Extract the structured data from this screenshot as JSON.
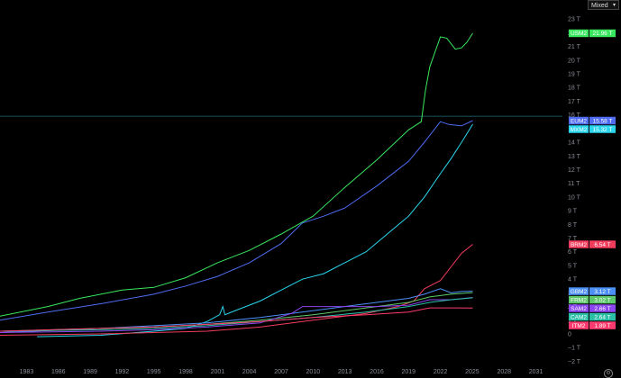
{
  "toolbar": {
    "scale_mode": "Mixed"
  },
  "icons": {
    "settings": "gear-icon",
    "dropdown": "chevron-down-icon"
  },
  "chart_data": {
    "type": "line",
    "xlim": [
      1980.5,
      2033.5
    ],
    "ylim": [
      -2.3,
      23.6
    ],
    "x_ticks": [
      "1983",
      "1986",
      "1989",
      "1992",
      "1995",
      "1998",
      "2001",
      "2004",
      "2007",
      "2010",
      "2013",
      "2016",
      "2019",
      "2022",
      "2025",
      "2028",
      "2031"
    ],
    "y_ticks": [
      "23 T",
      "22 T",
      "21 T",
      "20 T",
      "19 T",
      "18 T",
      "17 T",
      "16 T",
      "15 T",
      "14 T",
      "13 T",
      "12 T",
      "11 T",
      "10 T",
      "9 T",
      "8 T",
      "7 T",
      "6 T",
      "5 T",
      "4 T",
      "3 T",
      "2 T",
      "1 T",
      "0",
      "−1 T",
      "−2 T"
    ],
    "y_tick_values": [
      23,
      22,
      21,
      20,
      19,
      18,
      17,
      16,
      15,
      14,
      13,
      12,
      11,
      10,
      9,
      8,
      7,
      6,
      5,
      4,
      3,
      2,
      1,
      0,
      -1,
      -2
    ],
    "crosshair_y": 15.9,
    "series": [
      {
        "name": "USM2",
        "label": "21.96 T",
        "color": "#39e75f",
        "points": [
          [
            1980.5,
            1.3
          ],
          [
            1985,
            2.0
          ],
          [
            1988,
            2.6
          ],
          [
            1992,
            3.2
          ],
          [
            1995,
            3.4
          ],
          [
            1998,
            4.1
          ],
          [
            2001,
            5.2
          ],
          [
            2004,
            6.1
          ],
          [
            2007,
            7.3
          ],
          [
            2010,
            8.6
          ],
          [
            2013,
            10.7
          ],
          [
            2016,
            12.7
          ],
          [
            2019,
            14.9
          ],
          [
            2020.2,
            15.5
          ],
          [
            2020.6,
            17.8
          ],
          [
            2021,
            19.5
          ],
          [
            2022,
            21.7
          ],
          [
            2022.6,
            21.6
          ],
          [
            2023.4,
            20.8
          ],
          [
            2024,
            20.9
          ],
          [
            2024.5,
            21.3
          ],
          [
            2025.05,
            21.96
          ]
        ]
      },
      {
        "name": "EUM2",
        "label": "15.58 T",
        "color": "#4f6cf2",
        "points": [
          [
            1980.5,
            1.0
          ],
          [
            1985,
            1.6
          ],
          [
            1990,
            2.2
          ],
          [
            1995,
            2.9
          ],
          [
            1998,
            3.5
          ],
          [
            2001,
            4.2
          ],
          [
            2004,
            5.2
          ],
          [
            2007,
            6.6
          ],
          [
            2009,
            8.1
          ],
          [
            2011,
            8.6
          ],
          [
            2013,
            9.2
          ],
          [
            2016,
            10.8
          ],
          [
            2019,
            12.6
          ],
          [
            2020.5,
            14.0
          ],
          [
            2022,
            15.5
          ],
          [
            2022.8,
            15.3
          ],
          [
            2024,
            15.2
          ],
          [
            2025.05,
            15.58
          ]
        ]
      },
      {
        "name": "MXM2",
        "label": "15.32 T",
        "color": "#2ad6ee",
        "points": [
          [
            1984,
            -0.2
          ],
          [
            1990,
            -0.1
          ],
          [
            1995,
            0.2
          ],
          [
            1998,
            0.4
          ],
          [
            2000,
            0.9
          ],
          [
            2001.2,
            1.4
          ],
          [
            2001.5,
            2.0
          ],
          [
            2001.7,
            1.4
          ],
          [
            2003,
            1.8
          ],
          [
            2005,
            2.4
          ],
          [
            2007,
            3.2
          ],
          [
            2009,
            4.0
          ],
          [
            2011,
            4.4
          ],
          [
            2013,
            5.2
          ],
          [
            2015,
            6.0
          ],
          [
            2017,
            7.3
          ],
          [
            2019,
            8.6
          ],
          [
            2020.5,
            10.0
          ],
          [
            2022,
            11.7
          ],
          [
            2023,
            12.8
          ],
          [
            2024,
            14.0
          ],
          [
            2025.05,
            15.32
          ]
        ]
      },
      {
        "name": "BRM2",
        "label": "6.54 T",
        "color": "#f23c5c",
        "points": [
          [
            1980.5,
            -0.1
          ],
          [
            1990,
            0.0
          ],
          [
            1995,
            0.1
          ],
          [
            2000,
            0.2
          ],
          [
            2005,
            0.5
          ],
          [
            2010,
            1.0
          ],
          [
            2015,
            1.5
          ],
          [
            2018,
            2.0
          ],
          [
            2019.5,
            2.4
          ],
          [
            2020.5,
            3.3
          ],
          [
            2022,
            3.9
          ],
          [
            2023,
            4.9
          ],
          [
            2024,
            5.9
          ],
          [
            2025.05,
            6.54
          ]
        ]
      },
      {
        "name": "GBM2",
        "label": "3.12 T",
        "color": "#4c8ff5",
        "points": [
          [
            1980.5,
            0.1
          ],
          [
            1990,
            0.4
          ],
          [
            1995,
            0.6
          ],
          [
            2000,
            0.8
          ],
          [
            2005,
            1.2
          ],
          [
            2008,
            1.5
          ],
          [
            2012,
            1.9
          ],
          [
            2016,
            2.3
          ],
          [
            2019,
            2.6
          ],
          [
            2020.5,
            2.9
          ],
          [
            2022,
            3.3
          ],
          [
            2023,
            3.0
          ],
          [
            2024,
            3.1
          ],
          [
            2025.05,
            3.12
          ]
        ]
      },
      {
        "name": "FRM2",
        "label": "3.02 T",
        "color": "#5ec96b",
        "points": [
          [
            1980.5,
            0.2
          ],
          [
            1990,
            0.4
          ],
          [
            1995,
            0.5
          ],
          [
            2000,
            0.7
          ],
          [
            2005,
            1.0
          ],
          [
            2010,
            1.4
          ],
          [
            2015,
            1.9
          ],
          [
            2019,
            2.3
          ],
          [
            2021,
            2.7
          ],
          [
            2023,
            2.9
          ],
          [
            2025.05,
            3.02
          ]
        ]
      },
      {
        "name": "SAM2",
        "label": "2.66 T",
        "color": "#8d45f0",
        "points": [
          [
            1980.5,
            0.1
          ],
          [
            1990,
            0.2
          ],
          [
            1995,
            0.3
          ],
          [
            2000,
            0.5
          ],
          [
            2005,
            0.8
          ],
          [
            2008,
            1.5
          ],
          [
            2009,
            2.0
          ],
          [
            2012,
            2.0
          ],
          [
            2016,
            2.0
          ],
          [
            2019,
            2.1
          ],
          [
            2021,
            2.5
          ],
          [
            2023,
            2.5
          ],
          [
            2025.05,
            2.66
          ]
        ]
      },
      {
        "name": "CAM2",
        "label": "2.64 T",
        "color": "#2bbfa6",
        "points": [
          [
            1980.5,
            0.2
          ],
          [
            1990,
            0.3
          ],
          [
            1995,
            0.4
          ],
          [
            2000,
            0.6
          ],
          [
            2005,
            0.9
          ],
          [
            2010,
            1.2
          ],
          [
            2015,
            1.6
          ],
          [
            2019,
            2.0
          ],
          [
            2021,
            2.3
          ],
          [
            2023,
            2.5
          ],
          [
            2025.05,
            2.64
          ]
        ]
      },
      {
        "name": "ITM2",
        "label": "1.89 T",
        "color": "#ff3a6e",
        "points": [
          [
            1980.5,
            0.2
          ],
          [
            1990,
            0.4
          ],
          [
            1995,
            0.5
          ],
          [
            2000,
            0.7
          ],
          [
            2005,
            0.9
          ],
          [
            2010,
            1.2
          ],
          [
            2015,
            1.4
          ],
          [
            2019,
            1.6
          ],
          [
            2021,
            1.9
          ],
          [
            2023,
            1.9
          ],
          [
            2025.05,
            1.89
          ]
        ]
      }
    ]
  }
}
